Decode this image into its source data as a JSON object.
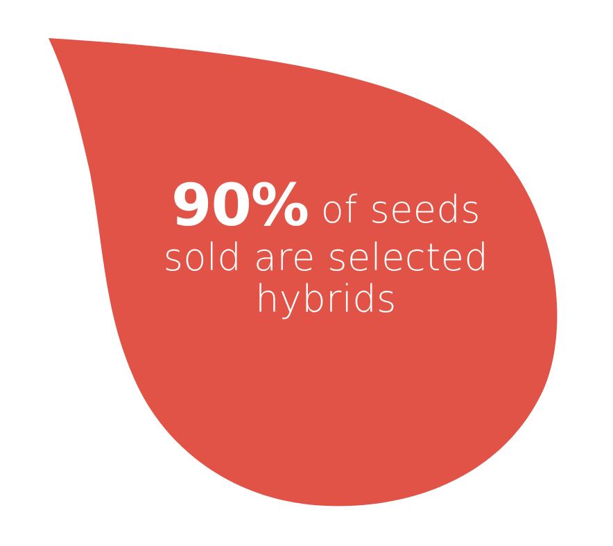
{
  "stat": {
    "number": "90%",
    "line1_rest": "of seeds",
    "line2": "sold are selected",
    "line3": "hybrids"
  },
  "colors": {
    "drop": "#E15347",
    "text": "#FFFFFF",
    "background": "#FFFFFF"
  }
}
